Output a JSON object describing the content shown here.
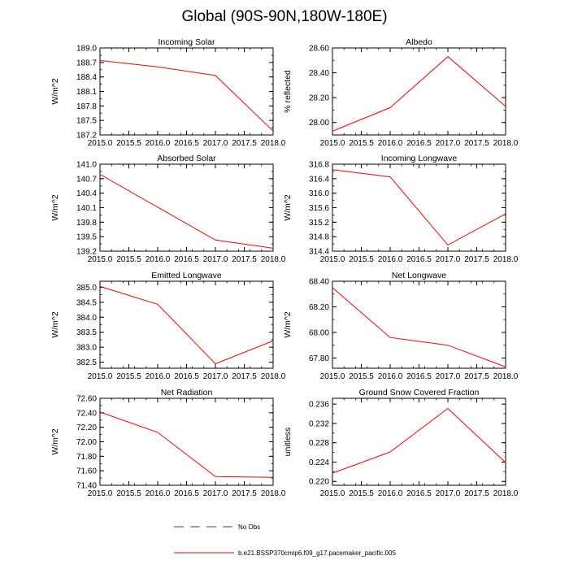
{
  "page_title": "Global (90S-90N,180W-180E)",
  "colors": {
    "model_line": "#ff0000",
    "obs_line": "#3a3aa0",
    "axis": "#000000"
  },
  "legend": {
    "obs_label": "No Obs",
    "model_label": "b.e21.BSSP370cmip6.f09_g17.pacemaker_pacific.005"
  },
  "chart_data": [
    {
      "type": "line",
      "title": "Incoming Solar",
      "xlabel": "",
      "ylabel": "W/m^2",
      "x": [
        2015.0,
        2016.0,
        2017.0,
        2018.0
      ],
      "series": [
        {
          "name": "b.e21.BSSP370cmip6.f09_g17.pacemaker_pacific.005",
          "values": [
            188.74,
            188.61,
            188.43,
            187.28
          ]
        }
      ],
      "xlim": [
        2015.0,
        2018.0
      ],
      "ylim": [
        187.2,
        189.0
      ],
      "xticks": [
        2015.0,
        2015.5,
        2016.0,
        2016.5,
        2017.0,
        2017.5,
        2018.0
      ],
      "xtick_labels": [
        "2015.0",
        "2015.5",
        "2016.0",
        "2016.5",
        "2017.0",
        "2017.5",
        "2018.0"
      ],
      "yticks": [
        187.2,
        187.5,
        187.8,
        188.1,
        188.4,
        188.7,
        189.0
      ],
      "ytick_labels": [
        "187.2",
        "187.5",
        "187.8",
        "188.1",
        "188.4",
        "188.7",
        "189.0"
      ]
    },
    {
      "type": "line",
      "title": "Albedo",
      "xlabel": "",
      "ylabel": "% reflected",
      "x": [
        2015.0,
        2016.0,
        2017.0,
        2018.0
      ],
      "series": [
        {
          "name": "b.e21.BSSP370cmip6.f09_g17.pacemaker_pacific.005",
          "values": [
            27.93,
            28.12,
            28.53,
            28.13
          ]
        }
      ],
      "xlim": [
        2015.0,
        2018.0
      ],
      "ylim": [
        27.9,
        28.6
      ],
      "xticks": [
        2015.0,
        2015.5,
        2016.0,
        2016.5,
        2017.0,
        2017.5,
        2018.0
      ],
      "xtick_labels": [
        "2015.0",
        "2015.5",
        "2016.0",
        "2016.5",
        "2017.0",
        "2017.5",
        "2018.0"
      ],
      "yticks": [
        28.0,
        28.2,
        28.4,
        28.6
      ],
      "ytick_labels": [
        "28.00",
        "28.20",
        "28.40",
        "28.60"
      ]
    },
    {
      "type": "line",
      "title": "Absorbed Solar",
      "xlabel": "",
      "ylabel": "W/m^2",
      "x": [
        2015.0,
        2016.0,
        2017.0,
        2018.0
      ],
      "series": [
        {
          "name": "b.e21.BSSP370cmip6.f09_g17.pacemaker_pacific.005",
          "values": [
            140.79,
            140.11,
            139.43,
            139.26
          ]
        }
      ],
      "xlim": [
        2015.0,
        2018.0
      ],
      "ylim": [
        139.2,
        141.0
      ],
      "xticks": [
        2015.0,
        2015.5,
        2016.0,
        2016.5,
        2017.0,
        2017.5,
        2018.0
      ],
      "xtick_labels": [
        "2015.0",
        "2015.5",
        "2016.0",
        "2016.5",
        "2017.0",
        "2017.5",
        "2018.0"
      ],
      "yticks": [
        139.2,
        139.5,
        139.8,
        140.1,
        140.4,
        140.7,
        141.0
      ],
      "ytick_labels": [
        "139.2",
        "139.5",
        "139.8",
        "140.1",
        "140.4",
        "140.7",
        "141.0"
      ]
    },
    {
      "type": "line",
      "title": "Incoming Longwave",
      "xlabel": "",
      "ylabel": "W/m^2",
      "x": [
        2015.0,
        2016.0,
        2017.0,
        2018.0
      ],
      "series": [
        {
          "name": "b.e21.BSSP370cmip6.f09_g17.pacemaker_pacific.005",
          "values": [
            316.65,
            316.45,
            314.57,
            315.43
          ]
        }
      ],
      "xlim": [
        2015.0,
        2018.0
      ],
      "ylim": [
        314.4,
        316.8
      ],
      "xticks": [
        2015.0,
        2015.5,
        2016.0,
        2016.5,
        2017.0,
        2017.5,
        2018.0
      ],
      "xtick_labels": [
        "2015.0",
        "2015.5",
        "2016.0",
        "2016.5",
        "2017.0",
        "2017.5",
        "2018.0"
      ],
      "yticks": [
        314.4,
        314.8,
        315.2,
        315.6,
        316.0,
        316.4,
        316.8
      ],
      "ytick_labels": [
        "314.4",
        "314.8",
        "315.2",
        "315.6",
        "316.0",
        "316.4",
        "316.8"
      ]
    },
    {
      "type": "line",
      "title": "Emitted Longwave",
      "xlabel": "",
      "ylabel": "W/m^2",
      "x": [
        2015.0,
        2016.0,
        2017.0,
        2018.0
      ],
      "series": [
        {
          "name": "b.e21.BSSP370cmip6.f09_g17.pacemaker_pacific.005",
          "values": [
            385.03,
            384.43,
            382.45,
            383.21
          ]
        }
      ],
      "xlim": [
        2015.0,
        2018.0
      ],
      "ylim": [
        382.3,
        385.2
      ],
      "xticks": [
        2015.0,
        2015.5,
        2016.0,
        2016.5,
        2017.0,
        2017.5,
        2018.0
      ],
      "xtick_labels": [
        "2015.0",
        "2015.5",
        "2016.0",
        "2016.5",
        "2017.0",
        "2017.5",
        "2018.0"
      ],
      "yticks": [
        382.5,
        383.0,
        383.5,
        384.0,
        384.5,
        385.0
      ],
      "ytick_labels": [
        "382.5",
        "383.0",
        "383.5",
        "384.0",
        "384.5",
        "385.0"
      ]
    },
    {
      "type": "line",
      "title": "Net Longwave",
      "xlabel": "",
      "ylabel": "W/m^2",
      "x": [
        2015.0,
        2016.0,
        2017.0,
        2018.0
      ],
      "series": [
        {
          "name": "b.e21.BSSP370cmip6.f09_g17.pacemaker_pacific.005",
          "values": [
            68.35,
            67.96,
            67.9,
            67.73
          ]
        }
      ],
      "xlim": [
        2015.0,
        2018.0
      ],
      "ylim": [
        67.72,
        68.4
      ],
      "xticks": [
        2015.0,
        2015.5,
        2016.0,
        2016.5,
        2017.0,
        2017.5,
        2018.0
      ],
      "xtick_labels": [
        "2015.0",
        "2015.5",
        "2016.0",
        "2016.5",
        "2017.0",
        "2017.5",
        "2018.0"
      ],
      "yticks": [
        67.8,
        68.0,
        68.2,
        68.4
      ],
      "ytick_labels": [
        "67.80",
        "68.00",
        "68.20",
        "68.40"
      ]
    },
    {
      "type": "line",
      "title": "Net Radiation",
      "xlabel": "",
      "ylabel": "W/m^2",
      "x": [
        2015.0,
        2016.0,
        2017.0,
        2018.0
      ],
      "series": [
        {
          "name": "b.e21.BSSP370cmip6.f09_g17.pacemaker_pacific.005",
          "values": [
            72.41,
            72.13,
            71.52,
            71.51
          ]
        }
      ],
      "xlim": [
        2015.0,
        2018.0
      ],
      "ylim": [
        71.4,
        72.6
      ],
      "xticks": [
        2015.0,
        2015.5,
        2016.0,
        2016.5,
        2017.0,
        2017.5,
        2018.0
      ],
      "xtick_labels": [
        "2015.0",
        "2015.5",
        "2016.0",
        "2016.5",
        "2017.0",
        "2017.5",
        "2018.0"
      ],
      "yticks": [
        71.4,
        71.6,
        71.8,
        72.0,
        72.2,
        72.4,
        72.6
      ],
      "ytick_labels": [
        "71.40",
        "71.60",
        "71.80",
        "72.00",
        "72.20",
        "72.40",
        "72.60"
      ]
    },
    {
      "type": "line",
      "title": "Ground Snow Covered Fraction",
      "xlabel": "",
      "ylabel": "unitless",
      "x": [
        2015.0,
        2016.0,
        2017.0,
        2018.0
      ],
      "series": [
        {
          "name": "b.e21.BSSP370cmip6.f09_g17.pacemaker_pacific.005",
          "values": [
            0.2217,
            0.2261,
            0.2351,
            0.2239
          ]
        }
      ],
      "xlim": [
        2015.0,
        2018.0
      ],
      "ylim": [
        0.2192,
        0.2372
      ],
      "xticks": [
        2015.0,
        2015.5,
        2016.0,
        2016.5,
        2017.0,
        2017.5,
        2018.0
      ],
      "xtick_labels": [
        "2015.0",
        "2015.5",
        "2016.0",
        "2016.5",
        "2017.0",
        "2017.5",
        "2018.0"
      ],
      "yticks": [
        0.22,
        0.224,
        0.228,
        0.232,
        0.236
      ],
      "ytick_labels": [
        "0.220",
        "0.224",
        "0.228",
        "0.232",
        "0.236"
      ]
    }
  ]
}
